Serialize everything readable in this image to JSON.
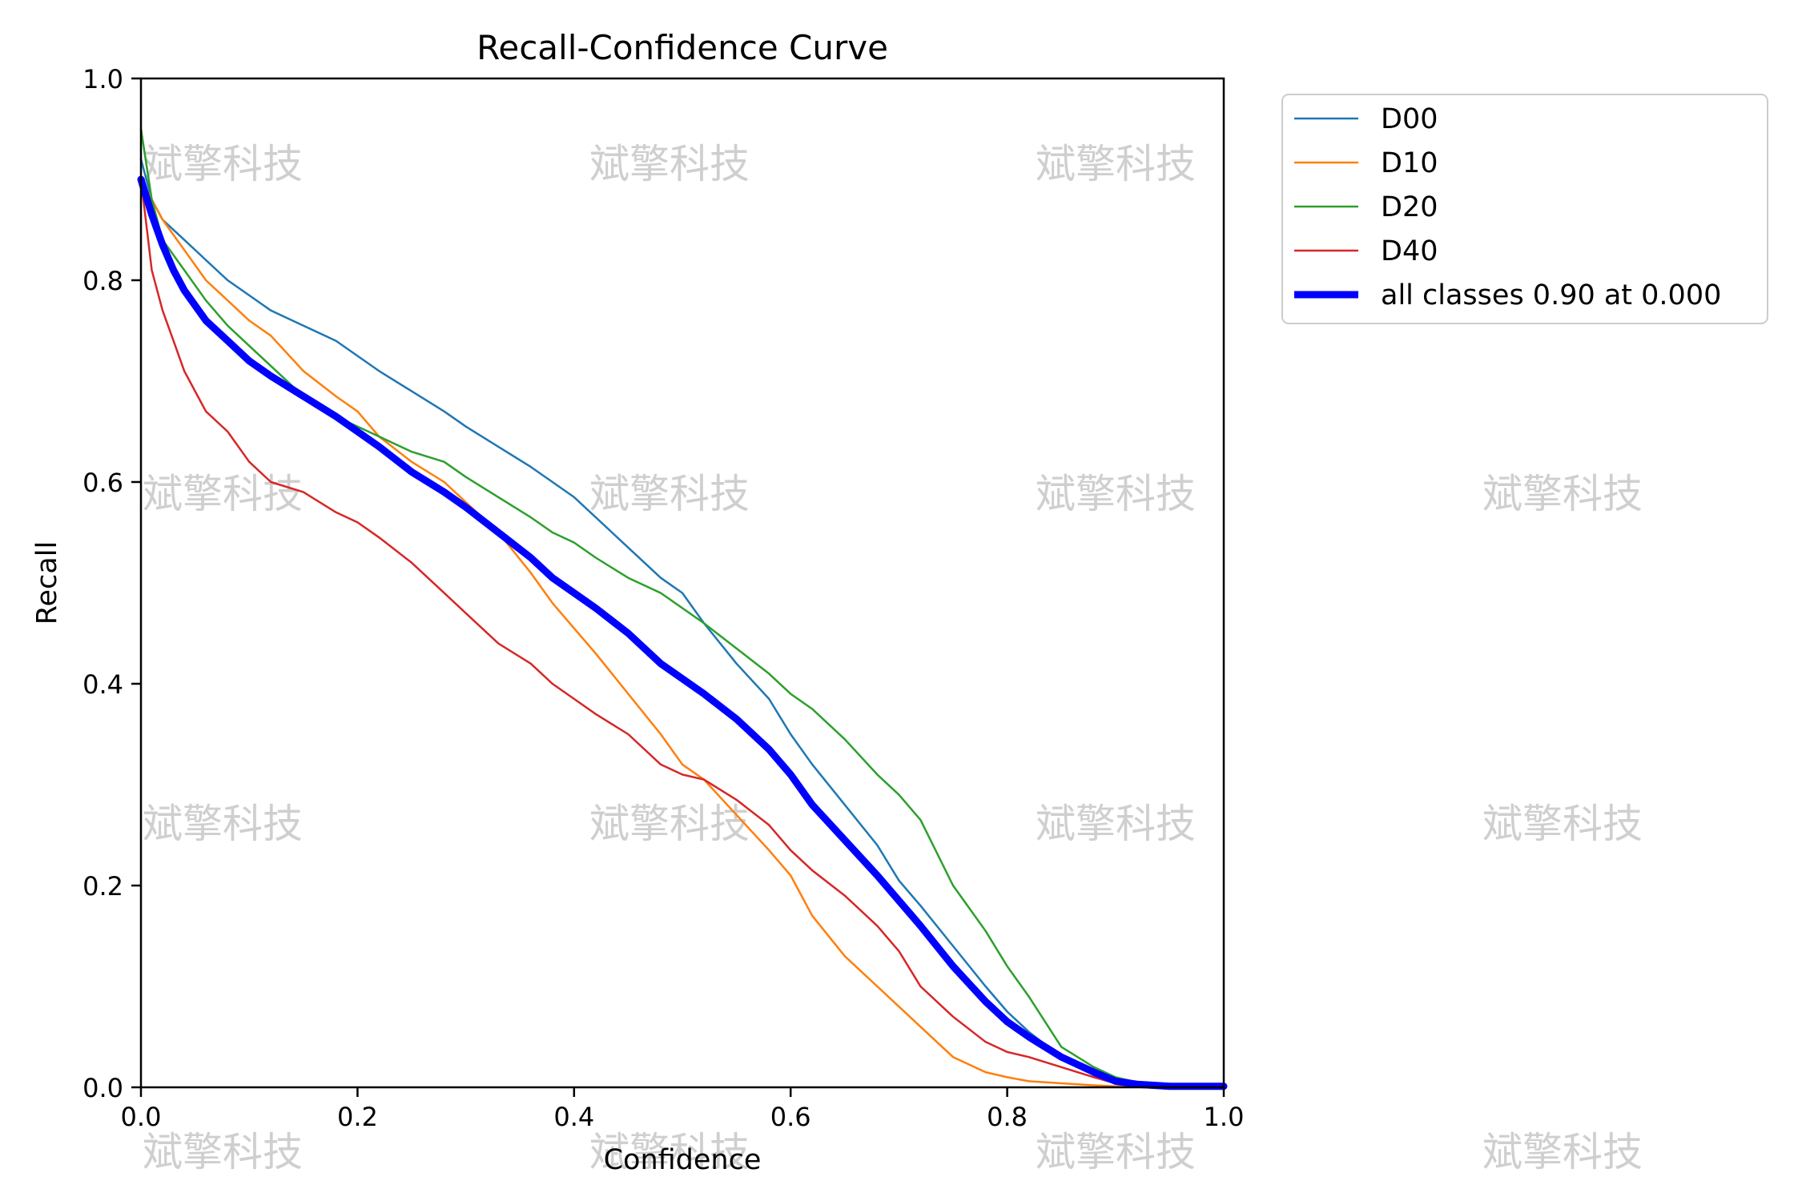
{
  "chart_data": {
    "type": "line",
    "title": "Recall-Confidence Curve",
    "xlabel": "Confidence",
    "ylabel": "Recall",
    "xlim": [
      0.0,
      1.0
    ],
    "ylim": [
      0.0,
      1.0
    ],
    "xticks": [
      "0.0",
      "0.2",
      "0.4",
      "0.6",
      "0.8",
      "1.0"
    ],
    "yticks": [
      "0.0",
      "0.2",
      "0.4",
      "0.6",
      "0.8",
      "1.0"
    ],
    "grid": false,
    "legend_position": "outside-top-right",
    "series": [
      {
        "name": "D00",
        "color": "#1f77b4",
        "x": [
          0.0,
          0.01,
          0.02,
          0.04,
          0.06,
          0.08,
          0.1,
          0.12,
          0.15,
          0.18,
          0.2,
          0.22,
          0.25,
          0.28,
          0.3,
          0.33,
          0.36,
          0.38,
          0.4,
          0.42,
          0.45,
          0.48,
          0.5,
          0.52,
          0.55,
          0.58,
          0.6,
          0.62,
          0.65,
          0.68,
          0.7,
          0.72,
          0.75,
          0.78,
          0.8,
          0.82,
          0.85,
          0.88,
          0.9,
          0.92,
          0.95,
          1.0
        ],
        "y": [
          0.92,
          0.88,
          0.86,
          0.84,
          0.82,
          0.8,
          0.785,
          0.77,
          0.755,
          0.74,
          0.725,
          0.71,
          0.69,
          0.67,
          0.655,
          0.635,
          0.615,
          0.6,
          0.585,
          0.565,
          0.535,
          0.505,
          0.49,
          0.46,
          0.42,
          0.385,
          0.35,
          0.32,
          0.28,
          0.24,
          0.205,
          0.18,
          0.14,
          0.1,
          0.075,
          0.055,
          0.03,
          0.012,
          0.005,
          0.002,
          0.001,
          0.001
        ]
      },
      {
        "name": "D10",
        "color": "#ff7f0e",
        "x": [
          0.0,
          0.01,
          0.02,
          0.04,
          0.06,
          0.08,
          0.1,
          0.12,
          0.15,
          0.18,
          0.2,
          0.22,
          0.25,
          0.28,
          0.3,
          0.33,
          0.36,
          0.38,
          0.4,
          0.42,
          0.45,
          0.48,
          0.5,
          0.52,
          0.55,
          0.58,
          0.6,
          0.62,
          0.65,
          0.68,
          0.7,
          0.72,
          0.75,
          0.78,
          0.8,
          0.82,
          0.85,
          0.88,
          0.9,
          0.92,
          0.95,
          1.0
        ],
        "y": [
          0.9,
          0.88,
          0.86,
          0.83,
          0.8,
          0.78,
          0.76,
          0.745,
          0.71,
          0.685,
          0.67,
          0.645,
          0.62,
          0.6,
          0.58,
          0.55,
          0.51,
          0.48,
          0.455,
          0.43,
          0.39,
          0.35,
          0.32,
          0.305,
          0.27,
          0.235,
          0.21,
          0.17,
          0.13,
          0.1,
          0.08,
          0.06,
          0.03,
          0.015,
          0.01,
          0.006,
          0.004,
          0.002,
          0.001,
          0.0005,
          0.0,
          0.0
        ]
      },
      {
        "name": "D20",
        "color": "#2ca02c",
        "x": [
          0.0,
          0.01,
          0.02,
          0.04,
          0.06,
          0.08,
          0.1,
          0.12,
          0.15,
          0.18,
          0.2,
          0.22,
          0.25,
          0.28,
          0.3,
          0.33,
          0.36,
          0.38,
          0.4,
          0.42,
          0.45,
          0.48,
          0.5,
          0.52,
          0.55,
          0.58,
          0.6,
          0.62,
          0.65,
          0.68,
          0.7,
          0.72,
          0.75,
          0.78,
          0.8,
          0.82,
          0.85,
          0.88,
          0.9,
          0.92,
          0.95,
          1.0
        ],
        "y": [
          0.95,
          0.88,
          0.84,
          0.81,
          0.78,
          0.755,
          0.735,
          0.715,
          0.685,
          0.665,
          0.655,
          0.645,
          0.63,
          0.62,
          0.605,
          0.585,
          0.565,
          0.55,
          0.54,
          0.525,
          0.505,
          0.49,
          0.475,
          0.46,
          0.435,
          0.41,
          0.39,
          0.375,
          0.345,
          0.31,
          0.29,
          0.265,
          0.2,
          0.155,
          0.12,
          0.09,
          0.04,
          0.02,
          0.01,
          0.005,
          0.002,
          0.001
        ]
      },
      {
        "name": "D40",
        "color": "#d62728",
        "x": [
          0.0,
          0.01,
          0.02,
          0.03,
          0.04,
          0.05,
          0.06,
          0.08,
          0.1,
          0.12,
          0.15,
          0.18,
          0.2,
          0.22,
          0.25,
          0.28,
          0.3,
          0.33,
          0.36,
          0.38,
          0.4,
          0.42,
          0.45,
          0.48,
          0.5,
          0.52,
          0.55,
          0.58,
          0.6,
          0.62,
          0.65,
          0.68,
          0.7,
          0.72,
          0.75,
          0.78,
          0.8,
          0.82,
          0.85,
          0.88,
          0.9,
          0.92,
          0.95,
          1.0
        ],
        "y": [
          0.9,
          0.81,
          0.77,
          0.74,
          0.71,
          0.69,
          0.67,
          0.65,
          0.62,
          0.6,
          0.59,
          0.57,
          0.56,
          0.545,
          0.52,
          0.49,
          0.47,
          0.44,
          0.42,
          0.4,
          0.385,
          0.37,
          0.35,
          0.32,
          0.31,
          0.305,
          0.285,
          0.26,
          0.235,
          0.215,
          0.19,
          0.16,
          0.135,
          0.1,
          0.07,
          0.045,
          0.035,
          0.03,
          0.02,
          0.01,
          0.004,
          0.002,
          0.001,
          0.0
        ]
      },
      {
        "name": "all classes 0.90 at 0.000",
        "color": "#0000ff",
        "bold": true,
        "x": [
          0.0,
          0.01,
          0.02,
          0.03,
          0.04,
          0.05,
          0.06,
          0.08,
          0.1,
          0.12,
          0.15,
          0.18,
          0.2,
          0.22,
          0.25,
          0.28,
          0.3,
          0.33,
          0.36,
          0.38,
          0.4,
          0.42,
          0.45,
          0.48,
          0.5,
          0.52,
          0.55,
          0.58,
          0.6,
          0.62,
          0.65,
          0.68,
          0.7,
          0.72,
          0.75,
          0.78,
          0.8,
          0.82,
          0.85,
          0.88,
          0.9,
          0.92,
          0.95,
          1.0
        ],
        "y": [
          0.9,
          0.865,
          0.835,
          0.81,
          0.79,
          0.775,
          0.76,
          0.74,
          0.72,
          0.705,
          0.685,
          0.665,
          0.65,
          0.635,
          0.61,
          0.59,
          0.575,
          0.55,
          0.525,
          0.505,
          0.49,
          0.475,
          0.45,
          0.42,
          0.405,
          0.39,
          0.365,
          0.335,
          0.31,
          0.28,
          0.245,
          0.21,
          0.185,
          0.16,
          0.12,
          0.085,
          0.065,
          0.05,
          0.03,
          0.015,
          0.006,
          0.003,
          0.001,
          0.001
        ]
      }
    ]
  },
  "watermark": {
    "text": "斌擎科技"
  }
}
